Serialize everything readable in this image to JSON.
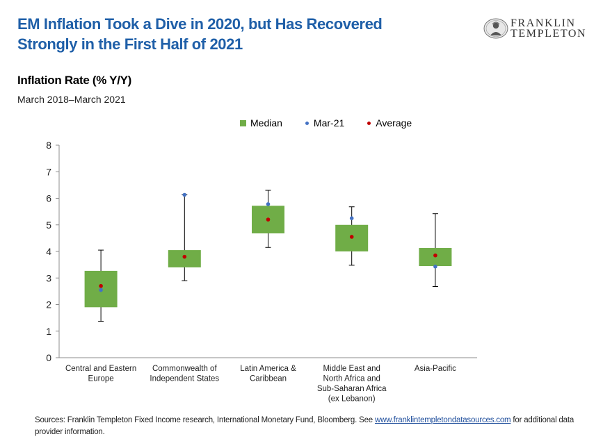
{
  "headline": {
    "line1": "EM Inflation Took a Dive in 2020, but Has Recovered",
    "line2": "Strongly in the First Half of 2021"
  },
  "logo": {
    "line1": "FRANKLIN",
    "line2": "TEMPLETON"
  },
  "colors": {
    "headline": "#1f5fa8",
    "box": "#70ad47",
    "mar21": "#4472c4",
    "average": "#c00000",
    "link": "#1f4e9c"
  },
  "chart_data": {
    "type": "box",
    "title": "Inflation Rate (% Y/Y)",
    "subtitle": "March 2018–March 2021",
    "ylim": [
      0,
      8
    ],
    "yticks": [
      "0",
      "1",
      "2",
      "3",
      "4",
      "5",
      "6",
      "7",
      "8"
    ],
    "grid": false,
    "legend_position": "top",
    "legend": [
      "Median",
      "Mar-21",
      "Average"
    ],
    "categories": [
      [
        "Central and Eastern",
        "Europe"
      ],
      [
        "Commonwealth of",
        "Independent States"
      ],
      [
        "Latin America &",
        "Caribbean"
      ],
      [
        "Middle East and",
        "North Africa and",
        "Sub-Saharan Africa",
        "(ex Lebanon)"
      ],
      [
        "Asia-Pacific"
      ]
    ],
    "series": [
      {
        "name": "Box",
        "values": [
          [
            1.9,
            3.27
          ],
          [
            3.4,
            4.05
          ],
          [
            4.68,
            5.72
          ],
          [
            4.0,
            5.0
          ],
          [
            3.45,
            4.13
          ]
        ]
      },
      {
        "name": "Whisker",
        "values": [
          [
            1.37,
            4.05
          ],
          [
            2.9,
            6.13
          ],
          [
            4.15,
            6.3
          ],
          [
            3.48,
            5.68
          ],
          [
            2.68,
            5.42
          ]
        ]
      },
      {
        "name": "Mar-21",
        "values": [
          2.55,
          6.13,
          5.78,
          5.25,
          3.43
        ]
      },
      {
        "name": "Average",
        "values": [
          2.7,
          3.8,
          5.2,
          4.55,
          3.85
        ]
      }
    ]
  },
  "source": {
    "prefix": "Sources: Franklin Templeton Fixed Income research, International Monetary Fund, Bloomberg. See ",
    "link": "www.franklintempletondatasources.com",
    "suffix": " for additional data provider information."
  }
}
